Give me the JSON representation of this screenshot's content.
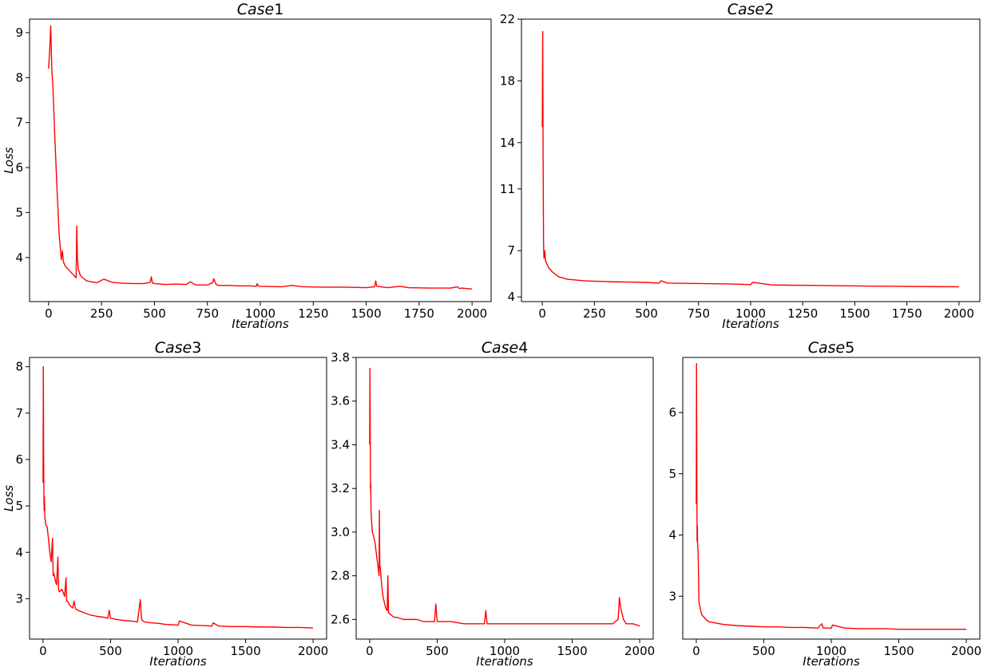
{
  "chart_data": [
    {
      "type": "line",
      "title_italic": "Case",
      "title_num": "1",
      "xlabel": "Iterations",
      "ylabel": "Loss",
      "xlim": [
        -90,
        2090
      ],
      "ylim": [
        3.02,
        9.3
      ],
      "xticks": [
        0,
        250,
        500,
        750,
        1000,
        1250,
        1500,
        1750,
        2000
      ],
      "yticks": [
        4,
        5,
        6,
        7,
        8,
        9
      ],
      "color": "#ff0000",
      "series": [
        {
          "x": [
            0,
            5,
            10,
            15,
            20,
            30,
            40,
            50,
            60,
            65,
            70,
            80,
            100,
            120,
            130,
            133,
            136,
            140,
            150,
            160,
            180,
            200,
            230,
            260,
            300,
            350,
            400,
            450,
            480,
            485,
            490,
            500,
            550,
            600,
            650,
            670,
            690,
            700,
            750,
            775,
            780,
            790,
            800,
            850,
            900,
            950,
            980,
            985,
            990,
            1000,
            1100,
            1150,
            1200,
            1300,
            1400,
            1500,
            1540,
            1545,
            1550,
            1600,
            1660,
            1700,
            1800,
            1900,
            1930,
            1940,
            1950,
            2000
          ],
          "y": [
            8.2,
            8.6,
            9.15,
            8.2,
            7.85,
            6.6,
            5.5,
            4.5,
            3.95,
            4.15,
            3.9,
            3.8,
            3.7,
            3.6,
            3.55,
            4.7,
            4.0,
            3.75,
            3.6,
            3.55,
            3.48,
            3.46,
            3.44,
            3.52,
            3.45,
            3.43,
            3.42,
            3.42,
            3.45,
            3.57,
            3.44,
            3.42,
            3.4,
            3.41,
            3.4,
            3.46,
            3.4,
            3.39,
            3.39,
            3.44,
            3.53,
            3.41,
            3.38,
            3.38,
            3.37,
            3.37,
            3.36,
            3.42,
            3.37,
            3.36,
            3.35,
            3.38,
            3.35,
            3.34,
            3.34,
            3.33,
            3.35,
            3.48,
            3.36,
            3.33,
            3.36,
            3.33,
            3.32,
            3.32,
            3.35,
            3.31,
            3.32,
            3.3
          ]
        }
      ]
    },
    {
      "type": "line",
      "title_italic": "Case",
      "title_num": "2",
      "xlabel": "Iterations",
      "ylabel": "",
      "xlim": [
        -100,
        2100
      ],
      "ylim": [
        3.7,
        22
      ],
      "xticks": [
        0,
        250,
        500,
        750,
        1000,
        1250,
        1500,
        1750,
        2000
      ],
      "yticks": [
        4,
        7,
        11,
        14,
        18,
        22
      ],
      "color": "#ff0000",
      "series": [
        {
          "x": [
            0,
            2,
            4,
            6,
            8,
            12,
            16,
            20,
            30,
            50,
            80,
            120,
            200,
            250,
            300,
            350,
            400,
            500,
            560,
            570,
            600,
            700,
            800,
            900,
            1000,
            1010,
            1100,
            1200,
            1300,
            1400,
            1500,
            1600,
            1700,
            1800,
            1900,
            2000
          ],
          "y": [
            15,
            21.2,
            13,
            7.5,
            6.5,
            7.0,
            6.3,
            6.2,
            5.9,
            5.6,
            5.3,
            5.15,
            5.05,
            5.02,
            5.0,
            4.98,
            4.97,
            4.94,
            4.9,
            5.05,
            4.9,
            4.88,
            4.86,
            4.84,
            4.8,
            4.95,
            4.78,
            4.76,
            4.75,
            4.73,
            4.72,
            4.7,
            4.69,
            4.68,
            4.67,
            4.66
          ]
        }
      ]
    },
    {
      "type": "line",
      "title_italic": "Case",
      "title_num": "3",
      "xlabel": "Iterations",
      "ylabel": "Loss",
      "xlim": [
        -100,
        2100
      ],
      "ylim": [
        2.13,
        8.2
      ],
      "xticks": [
        0,
        500,
        1000,
        1500,
        2000
      ],
      "yticks": [
        3,
        4,
        5,
        6,
        7,
        8
      ],
      "color": "#ff0000",
      "series": [
        {
          "x": [
            0,
            2,
            4,
            6,
            8,
            10,
            14,
            20,
            30,
            40,
            50,
            60,
            70,
            75,
            80,
            90,
            100,
            110,
            115,
            120,
            140,
            160,
            170,
            175,
            180,
            200,
            220,
            230,
            240,
            260,
            300,
            350,
            400,
            450,
            480,
            490,
            500,
            550,
            600,
            650,
            700,
            720,
            730,
            750,
            800,
            850,
            900,
            1000,
            1010,
            1100,
            1200,
            1250,
            1260,
            1300,
            1400,
            1500,
            1600,
            1700,
            1800,
            1900,
            2000
          ],
          "y": [
            5.5,
            8.0,
            6.2,
            5.4,
            4.9,
            5.2,
            4.75,
            4.6,
            4.55,
            4.3,
            4.0,
            3.8,
            4.3,
            3.5,
            3.55,
            3.4,
            3.3,
            3.9,
            3.2,
            3.15,
            3.2,
            3.05,
            3.45,
            2.95,
            2.95,
            2.85,
            2.8,
            2.95,
            2.78,
            2.75,
            2.7,
            2.65,
            2.62,
            2.6,
            2.58,
            2.75,
            2.58,
            2.55,
            2.53,
            2.52,
            2.5,
            2.98,
            2.55,
            2.5,
            2.48,
            2.47,
            2.45,
            2.43,
            2.52,
            2.43,
            2.42,
            2.41,
            2.48,
            2.41,
            2.4,
            2.4,
            2.39,
            2.39,
            2.38,
            2.38,
            2.37
          ]
        }
      ]
    },
    {
      "type": "line",
      "title_italic": "Case",
      "title_num": "4",
      "xlabel": "Iterations",
      "ylabel": "",
      "xlim": [
        -100,
        2100
      ],
      "ylim": [
        2.51,
        3.8
      ],
      "xticks": [
        0,
        500,
        1000,
        1500,
        2000
      ],
      "yticks": [
        2.6,
        2.8,
        3.0,
        3.2,
        3.4,
        3.6,
        3.8
      ],
      "color": "#ff0000",
      "series": [
        {
          "x": [
            0,
            2,
            4,
            6,
            8,
            10,
            14,
            20,
            30,
            40,
            50,
            60,
            70,
            72,
            75,
            80,
            90,
            100,
            120,
            130,
            135,
            140,
            160,
            180,
            200,
            250,
            300,
            350,
            400,
            480,
            490,
            500,
            600,
            700,
            800,
            850,
            860,
            870,
            900,
            1000,
            1100,
            1200,
            1300,
            1400,
            1500,
            1600,
            1700,
            1800,
            1840,
            1850,
            1860,
            1880,
            1900,
            1950,
            2000
          ],
          "y": [
            3.4,
            3.75,
            3.5,
            3.2,
            3.22,
            3.1,
            3.05,
            3.0,
            2.98,
            2.95,
            2.9,
            2.85,
            2.8,
            3.1,
            2.85,
            2.83,
            2.75,
            2.7,
            2.65,
            2.64,
            2.8,
            2.63,
            2.62,
            2.61,
            2.61,
            2.6,
            2.6,
            2.6,
            2.59,
            2.59,
            2.67,
            2.59,
            2.59,
            2.58,
            2.58,
            2.58,
            2.64,
            2.58,
            2.58,
            2.58,
            2.58,
            2.58,
            2.58,
            2.58,
            2.58,
            2.58,
            2.58,
            2.58,
            2.6,
            2.7,
            2.65,
            2.6,
            2.58,
            2.58,
            2.57
          ]
        }
      ]
    },
    {
      "type": "line",
      "title_italic": "Case",
      "title_num": "5",
      "xlabel": "Iterations",
      "ylabel": "",
      "xlim": [
        -100,
        2100
      ],
      "ylim": [
        2.3,
        6.9
      ],
      "xticks": [
        0,
        500,
        1000,
        1500,
        2000
      ],
      "yticks": [
        3,
        4,
        5,
        6
      ],
      "color": "#ff0000",
      "series": [
        {
          "x": [
            0,
            2,
            4,
            6,
            8,
            10,
            14,
            20,
            30,
            40,
            60,
            80,
            100,
            150,
            200,
            300,
            400,
            500,
            600,
            700,
            800,
            900,
            930,
            940,
            1000,
            1010,
            1100,
            1200,
            1300,
            1400,
            1500,
            1600,
            1700,
            1800,
            1900,
            2000
          ],
          "y": [
            4.5,
            6.8,
            5.2,
            3.9,
            4.15,
            3.85,
            3.7,
            2.9,
            2.8,
            2.7,
            2.65,
            2.6,
            2.58,
            2.56,
            2.54,
            2.52,
            2.51,
            2.5,
            2.5,
            2.49,
            2.49,
            2.48,
            2.55,
            2.48,
            2.48,
            2.53,
            2.48,
            2.47,
            2.47,
            2.47,
            2.46,
            2.46,
            2.46,
            2.46,
            2.46,
            2.46
          ]
        }
      ]
    }
  ]
}
